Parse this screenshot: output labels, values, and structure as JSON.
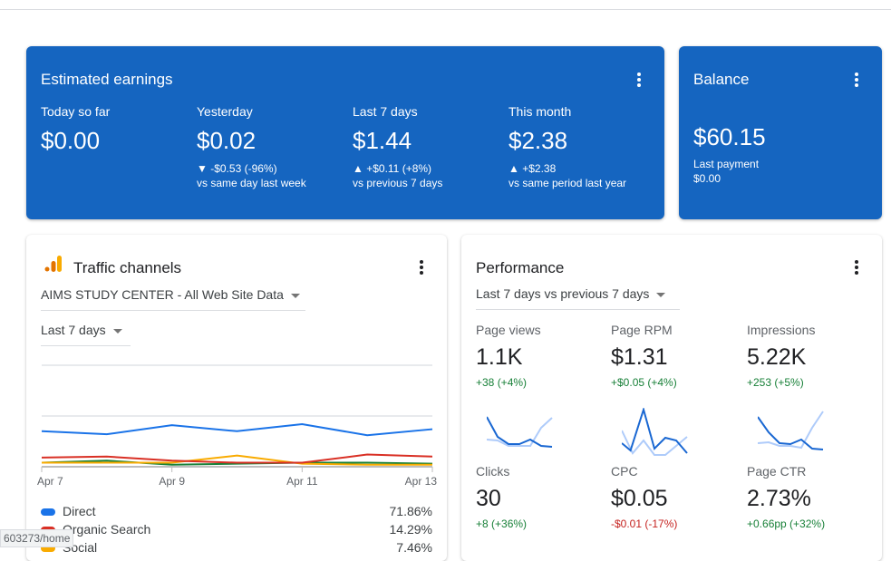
{
  "earnings": {
    "title": "Estimated earnings",
    "metrics": [
      {
        "label": "Today so far",
        "value": "$0.00",
        "change": "",
        "compare": ""
      },
      {
        "label": "Yesterday",
        "value": "$0.02",
        "change": "▼ -$0.53 (-96%)",
        "compare": "vs same day last week"
      },
      {
        "label": "Last 7 days",
        "value": "$1.44",
        "change": "▲ +$0.11 (+8%)",
        "compare": "vs previous 7 days"
      },
      {
        "label": "This month",
        "value": "$2.38",
        "change": "▲ +$2.38",
        "compare": "vs same period last year"
      }
    ]
  },
  "balance": {
    "title": "Balance",
    "value": "$60.15",
    "last_payment_label": "Last payment",
    "last_payment_value": "$0.00"
  },
  "traffic": {
    "title": "Traffic channels",
    "property": "AIMS STUDY CENTER - All Web Site Data",
    "range": "Last 7 days",
    "legend": [
      {
        "name": "Direct",
        "pct": "71.86%",
        "color": "#1a73e8"
      },
      {
        "name": "Organic Search",
        "pct": "14.29%",
        "color": "#d93025"
      },
      {
        "name": "Social",
        "pct": "7.46%",
        "color": "#f9ab00"
      }
    ]
  },
  "chart_data": {
    "type": "line",
    "x": [
      "Apr 7",
      "Apr 8",
      "Apr 9",
      "Apr 10",
      "Apr 11",
      "Apr 12",
      "Apr 13"
    ],
    "tick_labels": [
      "Apr 7",
      "Apr 9",
      "Apr 11",
      "Apr 13"
    ],
    "ylim": [
      0,
      100
    ],
    "grid": true,
    "series": [
      {
        "name": "Direct",
        "color": "#1a73e8",
        "values": [
          35,
          32,
          41,
          35,
          42,
          31,
          37
        ]
      },
      {
        "name": "Organic Search",
        "color": "#d93025",
        "values": [
          9,
          10,
          6,
          4,
          4,
          12,
          10
        ]
      },
      {
        "name": "Social",
        "color": "#f9ab00",
        "values": [
          4,
          4,
          4,
          11,
          3,
          2,
          2
        ]
      },
      {
        "color": "#188038",
        "values": [
          4,
          6,
          2,
          3,
          4,
          4,
          3
        ]
      }
    ]
  },
  "performance": {
    "title": "Performance",
    "range": "Last 7 days vs previous 7 days",
    "metrics": [
      {
        "label": "Page views",
        "value": "1.1K",
        "change": "+38 (+4%)",
        "negative": false
      },
      {
        "label": "Page RPM",
        "value": "$1.31",
        "change": "+$0.05 (+4%)",
        "negative": false
      },
      {
        "label": "Impressions",
        "value": "5.22K",
        "change": "+253 (+5%)",
        "negative": false
      },
      {
        "label": "Clicks",
        "value": "30",
        "change": "+8 (+36%)",
        "negative": false
      },
      {
        "label": "CPC",
        "value": "$0.05",
        "change": "-$0.01 (-17%)",
        "negative": true
      },
      {
        "label": "Page CTR",
        "value": "2.73%",
        "change": "+0.66pp (+32%)",
        "negative": false
      }
    ]
  },
  "status_url": "603273/home"
}
